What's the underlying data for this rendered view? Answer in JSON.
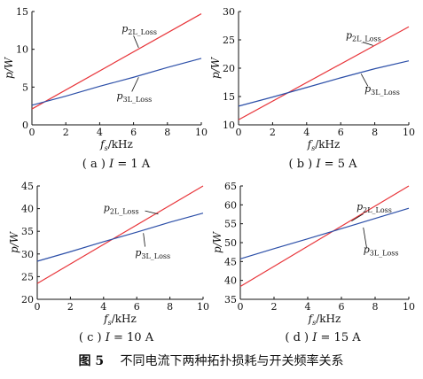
{
  "figure_caption": {
    "label": "图 5",
    "text": "不同电流下两种拓扑损耗与开关频率关系"
  },
  "colors": {
    "red": "#e8353a",
    "blue": "#2c4fa8",
    "axis": "#111111"
  },
  "chart_data": [
    {
      "type": "line",
      "caption": "( a )  I = 1  A",
      "xlabel": "fs/kHz",
      "ylabel": "p/W",
      "xlim": [
        0,
        10
      ],
      "ylim": [
        0,
        15
      ],
      "xticks": [
        0,
        2,
        4,
        6,
        8,
        10
      ],
      "yticks": [
        0,
        5,
        10,
        15
      ],
      "series": [
        {
          "name": "p2L_Loss",
          "color": "red",
          "x": [
            0,
            10
          ],
          "y": [
            2.1,
            14.7
          ],
          "label_at": [
            5.3,
            12.3
          ],
          "leader": [
            [
              6.0,
              11.8
            ],
            [
              6.3,
              10.2
            ]
          ]
        },
        {
          "name": "p3L_Loss",
          "color": "blue",
          "x": [
            0,
            2,
            4,
            6,
            8,
            10
          ],
          "y": [
            2.6,
            3.8,
            5.1,
            6.3,
            7.6,
            8.8
          ],
          "label_at": [
            5.0,
            3.4
          ],
          "leader": [
            [
              5.9,
              4.4
            ],
            [
              6.3,
              6.3
            ]
          ]
        }
      ]
    },
    {
      "type": "line",
      "caption": "( b )  I = 5  A",
      "xlabel": "fs/kHz",
      "ylabel": "p/W",
      "xlim": [
        0,
        10
      ],
      "ylim": [
        10,
        30
      ],
      "xticks": [
        0,
        2,
        4,
        6,
        8,
        10
      ],
      "yticks": [
        10,
        15,
        20,
        25,
        30
      ],
      "series": [
        {
          "name": "p2L_Loss",
          "color": "red",
          "x": [
            0,
            10
          ],
          "y": [
            10.9,
            27.3
          ],
          "label_at": [
            6.3,
            25.2
          ],
          "leader": [
            [
              7.3,
              24.6
            ],
            [
              7.9,
              24.0
            ]
          ]
        },
        {
          "name": "p3L_Loss",
          "color": "blue",
          "x": [
            0,
            2,
            4,
            6,
            8,
            10
          ],
          "y": [
            13.3,
            14.9,
            16.6,
            18.3,
            19.9,
            21.3
          ],
          "label_at": [
            7.4,
            15.8
          ],
          "leader": [
            [
              7.6,
              16.8
            ],
            [
              7.2,
              19.0
            ]
          ]
        }
      ]
    },
    {
      "type": "line",
      "caption": "( c )  I = 10  A",
      "xlabel": "fs/kHz",
      "ylabel": "p/W",
      "xlim": [
        0,
        10
      ],
      "ylim": [
        20,
        45
      ],
      "xticks": [
        0,
        2,
        4,
        6,
        8,
        10
      ],
      "yticks": [
        20,
        25,
        30,
        35,
        40,
        45
      ],
      "series": [
        {
          "name": "p2L_Loss",
          "color": "red",
          "x": [
            0,
            10
          ],
          "y": [
            23.5,
            45.0
          ],
          "label_at": [
            4.0,
            39.4
          ],
          "leader": [
            [
              6.5,
              39.5
            ],
            [
              7.3,
              38.8
            ]
          ]
        },
        {
          "name": "p3L_Loss",
          "color": "blue",
          "x": [
            0,
            2,
            4,
            6,
            8,
            10
          ],
          "y": [
            28.4,
            30.5,
            32.7,
            34.8,
            37.0,
            39.0
          ],
          "label_at": [
            5.9,
            29.6
          ],
          "leader": [
            [
              6.5,
              31.6
            ],
            [
              6.4,
              34.6
            ]
          ]
        }
      ]
    },
    {
      "type": "line",
      "caption": "( d )  I = 15  A",
      "xlabel": "fs/kHz",
      "ylabel": "p/W",
      "xlim": [
        0,
        10
      ],
      "ylim": [
        35,
        65
      ],
      "xticks": [
        0,
        2,
        4,
        6,
        8,
        10
      ],
      "yticks": [
        35,
        40,
        45,
        50,
        55,
        60,
        65
      ],
      "series": [
        {
          "name": "p2L_Loss",
          "color": "red",
          "x": [
            0,
            10
          ],
          "y": [
            38.4,
            65.0
          ],
          "label_at": [
            6.9,
            58.7
          ],
          "leader": [
            [
              7.3,
              57.6
            ],
            [
              6.6,
              55.7
            ]
          ]
        },
        {
          "name": "p3L_Loss",
          "color": "blue",
          "x": [
            0,
            2,
            4,
            6,
            8,
            10
          ],
          "y": [
            45.7,
            48.4,
            51.0,
            53.7,
            56.4,
            59.1
          ],
          "label_at": [
            7.3,
            47.3
          ],
          "leader": [
            [
              7.5,
              48.6
            ],
            [
              7.3,
              54.0
            ]
          ]
        }
      ]
    }
  ]
}
